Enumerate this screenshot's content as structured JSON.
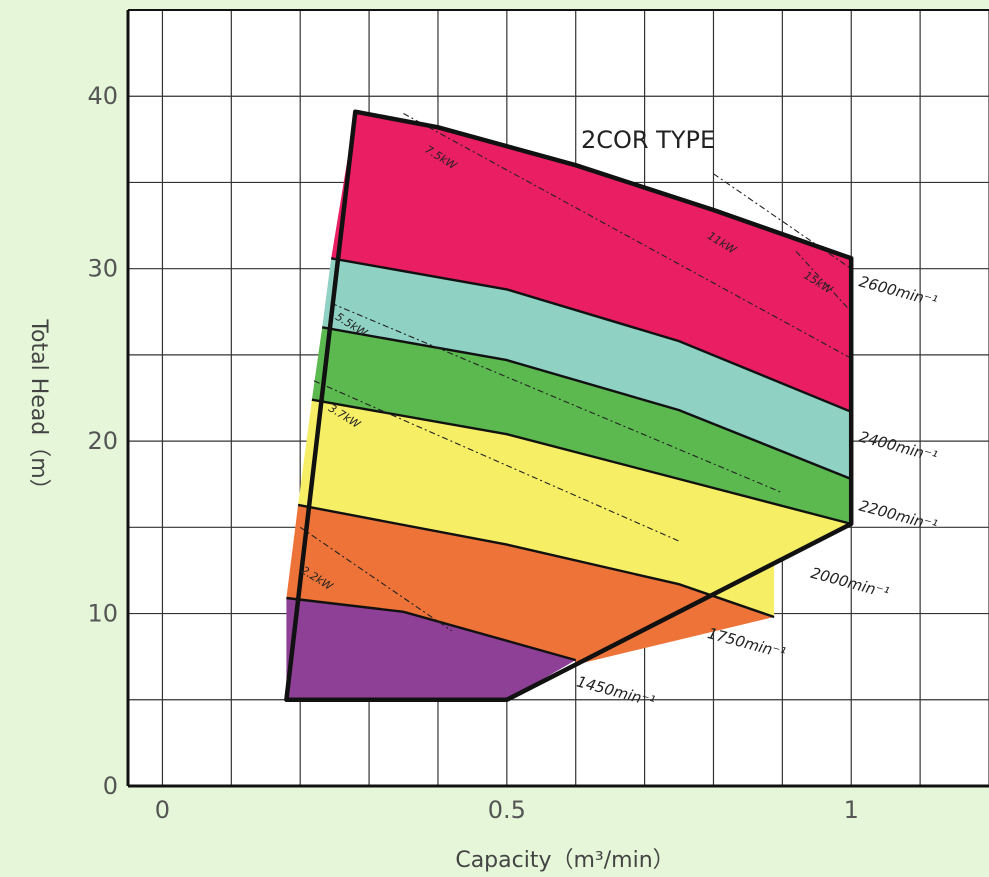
{
  "chart_data": {
    "type": "area",
    "title": "2COR TYPE",
    "xlabel": "Capacity（m³/min）",
    "ylabel": "Total Head（m）",
    "xlim": [
      -0.05,
      1.2
    ],
    "ylim": [
      0,
      45
    ],
    "x_ticks": [
      0,
      0.5,
      1
    ],
    "x_tick_labels": [
      "0",
      "0.5",
      "1"
    ],
    "y_ticks": [
      0,
      10,
      20,
      30,
      40
    ],
    "y_tick_labels": [
      "0",
      "10",
      "20",
      "30",
      "40"
    ],
    "grid": true,
    "grid_x_step": 0.1,
    "grid_y_step": 5,
    "envelope": {
      "top": [
        [
          0.28,
          39.1
        ],
        [
          0.4,
          38.2
        ],
        [
          0.6,
          36.0
        ],
        [
          0.8,
          33.4
        ],
        [
          1.0,
          30.6
        ]
      ],
      "right_upper": [
        1.0,
        30.6
      ],
      "right_lower": [
        1.0,
        15.2
      ],
      "bottom": [
        [
          1.0,
          15.2
        ],
        [
          0.5,
          5.0
        ]
      ],
      "left": [
        [
          0.18,
          5.0
        ],
        [
          0.28,
          39.1
        ]
      ]
    },
    "speed_curves": [
      {
        "name": "2600min⁻¹",
        "points": [
          [
            0.245,
            30.6
          ],
          [
            0.5,
            28.8
          ],
          [
            0.75,
            25.8
          ],
          [
            1.0,
            21.7
          ]
        ],
        "color": "#e91e63"
      },
      {
        "name": "2400min⁻¹",
        "points": [
          [
            0.232,
            26.6
          ],
          [
            0.5,
            24.7
          ],
          [
            0.75,
            21.8
          ],
          [
            1.0,
            17.8
          ]
        ],
        "color": "#8fd1c2"
      },
      {
        "name": "2200min⁻¹",
        "points": [
          [
            0.217,
            22.4
          ],
          [
            0.5,
            20.4
          ],
          [
            0.75,
            17.8
          ],
          [
            1.0,
            15.2
          ]
        ],
        "color": "#5cb94f"
      },
      {
        "name": "2000min⁻¹",
        "points": [
          [
            0.197,
            16.3
          ],
          [
            0.5,
            14.0
          ],
          [
            0.75,
            11.7
          ],
          [
            0.888,
            9.8
          ]
        ],
        "color": "#f6ef66"
      },
      {
        "name": "1750min⁻¹",
        "points": [
          [
            0.18,
            10.9
          ],
          [
            0.35,
            10.1
          ],
          [
            0.6,
            7.3
          ]
        ],
        "color": "#ee7338"
      },
      {
        "name": "1450min⁻¹",
        "points": [
          [
            0.18,
            5.0
          ],
          [
            0.5,
            5.0
          ]
        ],
        "color": "#8e3f96"
      }
    ],
    "bands": [
      {
        "name": "2600min⁻¹",
        "color": "#e91e63"
      },
      {
        "name": "2400min⁻¹",
        "color": "#8fd1c2"
      },
      {
        "name": "2200min⁻¹",
        "color": "#5cb94f"
      },
      {
        "name": "2000min⁻¹",
        "color": "#f6ef66"
      },
      {
        "name": "1750min⁻¹",
        "color": "#ee7338"
      },
      {
        "name": "1450min⁻¹",
        "color": "#8e3f96"
      }
    ],
    "speed_labels": [
      {
        "text": "2600min⁻¹",
        "x": 1.01,
        "y": 29.0
      },
      {
        "text": "2400min⁻¹",
        "x": 1.01,
        "y": 20.0
      },
      {
        "text": "2200min⁻¹",
        "x": 1.01,
        "y": 16.0
      },
      {
        "text": "2000min⁻¹",
        "x": 0.94,
        "y": 12.1
      },
      {
        "text": "1750min⁻¹",
        "x": 0.79,
        "y": 8.6
      },
      {
        "text": "1450min⁻¹",
        "x": 0.6,
        "y": 5.8
      }
    ],
    "power_lines": [
      {
        "label": "7.5kW",
        "points": [
          [
            0.35,
            39.0
          ],
          [
            1.0,
            24.8
          ]
        ]
      },
      {
        "label": "11kW",
        "points": [
          [
            0.8,
            35.5
          ],
          [
            1.0,
            30.0
          ]
        ]
      },
      {
        "label": "15kW",
        "points": [
          [
            0.92,
            31.0
          ],
          [
            1.0,
            27.5
          ]
        ]
      },
      {
        "label": "5.5kW",
        "points": [
          [
            0.245,
            28.0
          ],
          [
            0.9,
            17.0
          ]
        ]
      },
      {
        "label": "3.7kW",
        "points": [
          [
            0.22,
            23.5
          ],
          [
            0.75,
            14.2
          ]
        ]
      },
      {
        "label": "2.2kW",
        "points": [
          [
            0.2,
            15.0
          ],
          [
            0.42,
            9.0
          ]
        ]
      }
    ],
    "power_labels": [
      {
        "text": "7.5kW",
        "x": 0.38,
        "y": 36.8
      },
      {
        "text": "11kW",
        "x": 0.79,
        "y": 31.8
      },
      {
        "text": "15kW",
        "x": 0.93,
        "y": 29.5
      },
      {
        "text": "5.5kW",
        "x": 0.25,
        "y": 27.1
      },
      {
        "text": "3.7kW",
        "x": 0.24,
        "y": 21.8
      },
      {
        "text": "2.2kW",
        "x": 0.2,
        "y": 12.4
      }
    ]
  }
}
